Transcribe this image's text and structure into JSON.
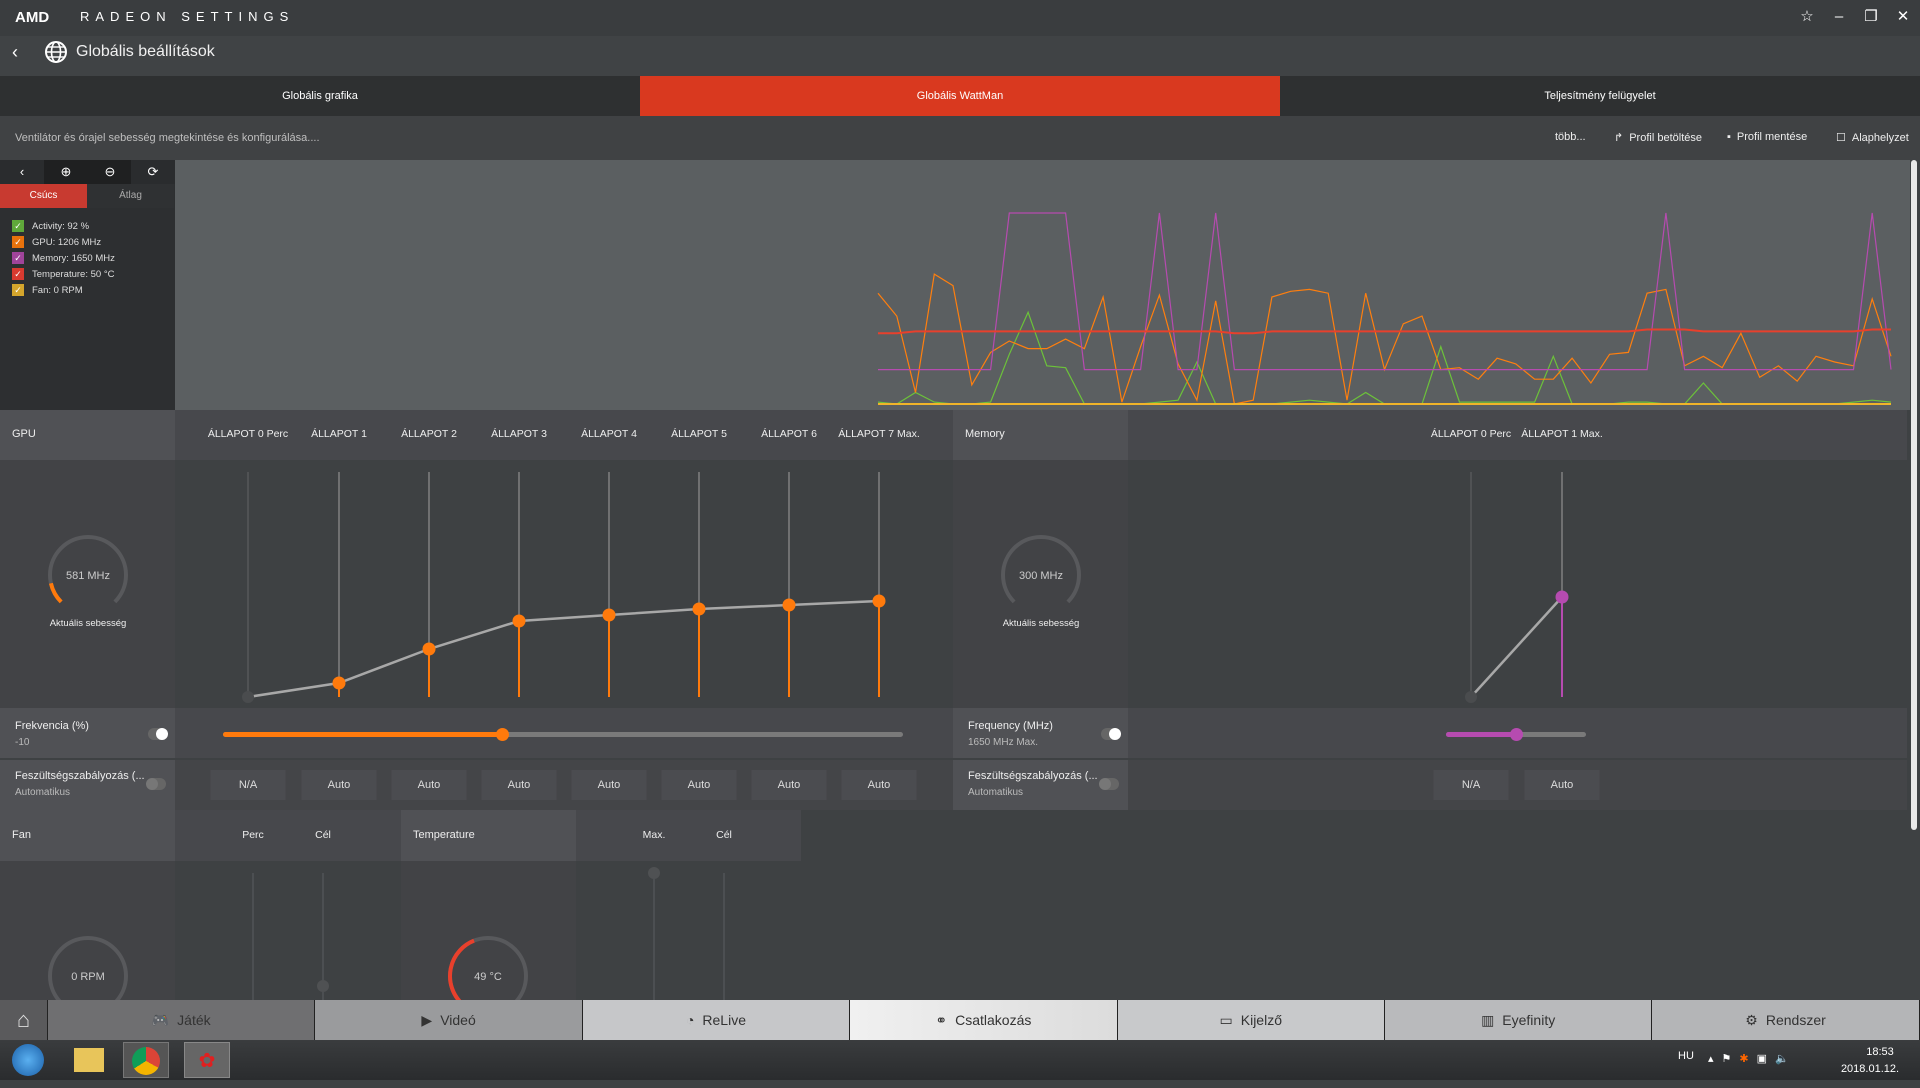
{
  "app": {
    "logo": "AMD",
    "title": "RADEON SETTINGS",
    "page_title": "Globális beállítások"
  },
  "window_icons": [
    "star-icon",
    "minimize-icon",
    "restore-icon",
    "close-icon"
  ],
  "tabs": [
    {
      "label": "Globális grafika"
    },
    {
      "label": "Globális WattMan",
      "active": true
    },
    {
      "label": "Teljesítmény felügyelet"
    }
  ],
  "subbar": {
    "description": "Ventilátor és órajel sebesség megtekintése és konfigurálása....",
    "more": "több...",
    "load_profile": "Profil betöltése",
    "save_profile": "Profil mentése",
    "reset": "Alaphelyzet"
  },
  "monitor": {
    "peak_tab": "Csúcs",
    "avg_tab": "Átlag",
    "legend": [
      {
        "label": "Activity: 92 %",
        "color": "#5fa83a"
      },
      {
        "label": "GPU: 1206 MHz",
        "color": "#e8720c"
      },
      {
        "label": "Memory: 1650 MHz",
        "color": "#a0449a"
      },
      {
        "label": "Temperature: 50 °C",
        "color": "#d83a30"
      },
      {
        "label": "Fan: 0 RPM",
        "color": "#d4a52c"
      }
    ]
  },
  "chart_data": {
    "type": "line",
    "xlabel": "",
    "ylabel": "",
    "ylim": [
      0,
      100
    ],
    "grid": false,
    "series": [
      {
        "key": "activity",
        "color": "#6cc23a",
        "values": [
          1,
          0,
          6,
          1,
          0,
          0,
          1,
          26,
          48,
          20,
          19,
          0,
          0,
          0,
          0,
          1,
          2,
          22,
          0,
          0,
          0,
          0,
          1,
          2,
          1,
          0,
          6,
          0,
          0,
          0,
          30,
          1,
          1,
          1,
          1,
          1,
          25,
          0,
          0,
          0,
          1,
          1,
          0,
          0,
          11,
          0,
          0,
          0,
          0,
          0,
          0,
          0,
          1,
          2,
          1
        ]
      },
      {
        "key": "gpu",
        "color": "#ff7f0e",
        "values": [
          58,
          46,
          6,
          68,
          62,
          10,
          27,
          33,
          29,
          29,
          34,
          29,
          56,
          1,
          30,
          57,
          21,
          2,
          54,
          0,
          2,
          56,
          59,
          60,
          58,
          2,
          58,
          18,
          42,
          46,
          18,
          19,
          13,
          24,
          21,
          13,
          13,
          24,
          11,
          26,
          27,
          58,
          60,
          20,
          25,
          19,
          37,
          14,
          20,
          12,
          25,
          22,
          20,
          55,
          25
        ]
      },
      {
        "key": "memory",
        "color": "#b64bb0",
        "values": [
          18,
          18,
          18,
          18,
          18,
          18,
          18,
          100,
          100,
          100,
          100,
          18,
          18,
          18,
          18,
          100,
          18,
          18,
          100,
          18,
          18,
          18,
          18,
          18,
          18,
          18,
          18,
          18,
          18,
          18,
          18,
          18,
          18,
          18,
          18,
          18,
          18,
          18,
          18,
          18,
          18,
          18,
          100,
          18,
          18,
          18,
          18,
          18,
          18,
          18,
          18,
          18,
          18,
          100,
          18
        ]
      },
      {
        "key": "temperature",
        "color": "#e8402c",
        "values": [
          37,
          37,
          38,
          38,
          38,
          38,
          38,
          38,
          38,
          38,
          38,
          38,
          38,
          38,
          38,
          38,
          38,
          38,
          38,
          37,
          37,
          38,
          38,
          38,
          38,
          38,
          38,
          38,
          38,
          38,
          38,
          38,
          38,
          38,
          38,
          38,
          38,
          38,
          38,
          38,
          38,
          39,
          39,
          39,
          38,
          38,
          38,
          38,
          38,
          38,
          38,
          38,
          38,
          39,
          39
        ]
      },
      {
        "key": "fan",
        "color": "#f0b429",
        "values": [
          0,
          0,
          0,
          0,
          0,
          0,
          0,
          0,
          0,
          0,
          0,
          0,
          0,
          0,
          0,
          0,
          0,
          0,
          0,
          0,
          0,
          0,
          0,
          0,
          0,
          0,
          0,
          0,
          0,
          0,
          0,
          0,
          0,
          0,
          0,
          0,
          0,
          0,
          0,
          0,
          0,
          0,
          0,
          0,
          0,
          0,
          0,
          0,
          0,
          0,
          0,
          0,
          0,
          0,
          0
        ]
      }
    ]
  },
  "gpu": {
    "label": "GPU",
    "gauge_value": "581 MHz",
    "gauge_fraction": 0.12,
    "gauge_caption": "Aktuális sebesség",
    "states": [
      "ÁLLAPOT 0 Perc",
      "ÁLLAPOT 1",
      "ÁLLAPOT 2",
      "ÁLLAPOT 3",
      "ÁLLAPOT 4",
      "ÁLLAPOT 5",
      "ÁLLAPOT 6",
      "ÁLLAPOT 7 Max."
    ],
    "state_levels": [
      0,
      7,
      24,
      38,
      41,
      44,
      46,
      48
    ],
    "freq_label": "Frekvencia (%)",
    "freq_value": "-10",
    "freq_slider": 0.41,
    "volt_label": "Feszültségszabályozás (...",
    "volt_value": "Automatikus",
    "volt_buttons": [
      "N/A",
      "Auto",
      "Auto",
      "Auto",
      "Auto",
      "Auto",
      "Auto",
      "Auto"
    ]
  },
  "memory": {
    "label": "Memory",
    "gauge_value": "300 MHz",
    "gauge_caption": "Aktuális sebesség",
    "states": [
      "ÁLLAPOT 0 Perc",
      "ÁLLAPOT 1 Max."
    ],
    "state_levels": [
      0,
      50
    ],
    "freq_label": "Frequency (MHz)",
    "freq_value": "1650 MHz Max.",
    "freq_slider": 0.5,
    "volt_label": "Feszültségszabályozás (...",
    "volt_value": "Automatikus",
    "volt_buttons": [
      "N/A",
      "Auto"
    ]
  },
  "fan": {
    "label": "Fan",
    "col_min": "Perc",
    "col_target": "Cél",
    "gauge_value": "0 RPM"
  },
  "temperature": {
    "label": "Temperature",
    "col_max": "Max.",
    "col_target": "Cél",
    "gauge_value": "49 °C",
    "gauge_fraction": 0.42
  },
  "nav": [
    {
      "label": "",
      "icon": "home-icon"
    },
    {
      "label": "Játék",
      "icon": "gamepad-icon"
    },
    {
      "label": "Videó",
      "icon": "play-icon"
    },
    {
      "label": "ReLive",
      "icon": "relive-icon"
    },
    {
      "label": "Csatlakozás",
      "icon": "connect-icon"
    },
    {
      "label": "Kijelző",
      "icon": "monitor-icon"
    },
    {
      "label": "Eyefinity",
      "icon": "eyefinity-icon"
    },
    {
      "label": "Rendszer",
      "icon": "gear-wrench-icon"
    }
  ],
  "taskbar": {
    "lang": "HU",
    "time": "18:53",
    "date": "2018.01.12."
  }
}
